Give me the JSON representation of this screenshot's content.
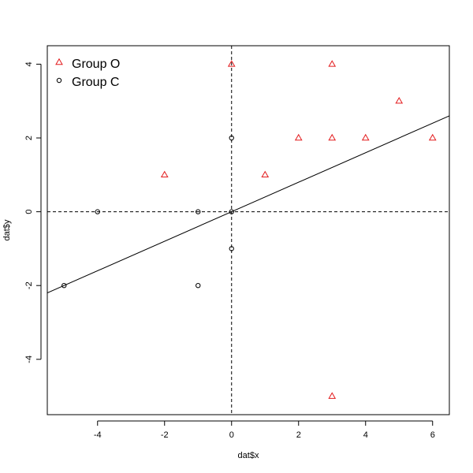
{
  "chart_data": {
    "type": "scatter",
    "xlabel": "dat$x",
    "ylabel": "dat$y",
    "xlim": [
      -5.5,
      6.5
    ],
    "ylim": [
      -5.5,
      4.5
    ],
    "x_ticks": [
      -4,
      -2,
      0,
      2,
      4,
      6
    ],
    "y_ticks": [
      -4,
      -2,
      0,
      2,
      4
    ],
    "grid": false,
    "legend_position": "top-left",
    "series": [
      {
        "name": "Group O",
        "marker": "triangle",
        "color": "#e31a1c",
        "points": [
          {
            "x": 0,
            "y": 4
          },
          {
            "x": 3,
            "y": 4
          },
          {
            "x": 5,
            "y": 3
          },
          {
            "x": 2,
            "y": 2
          },
          {
            "x": 3,
            "y": 2
          },
          {
            "x": 4,
            "y": 2
          },
          {
            "x": 6,
            "y": 2
          },
          {
            "x": -2,
            "y": 1
          },
          {
            "x": 1,
            "y": 1
          },
          {
            "x": 3,
            "y": -5
          }
        ]
      },
      {
        "name": "Group C",
        "marker": "circle",
        "color": "#000000",
        "points": [
          {
            "x": 0,
            "y": 2
          },
          {
            "x": -4,
            "y": 0
          },
          {
            "x": -1,
            "y": 0
          },
          {
            "x": 0,
            "y": 0
          },
          {
            "x": 0,
            "y": -1
          },
          {
            "x": -5,
            "y": -2
          },
          {
            "x": -1,
            "y": -2
          }
        ]
      }
    ],
    "reference_lines": [
      {
        "orientation": "horizontal",
        "value": 0,
        "style": "dashed"
      },
      {
        "orientation": "vertical",
        "value": 0,
        "style": "dashed"
      }
    ],
    "fit_line": {
      "intercept": 0,
      "slope": 0.4,
      "style": "solid"
    }
  }
}
